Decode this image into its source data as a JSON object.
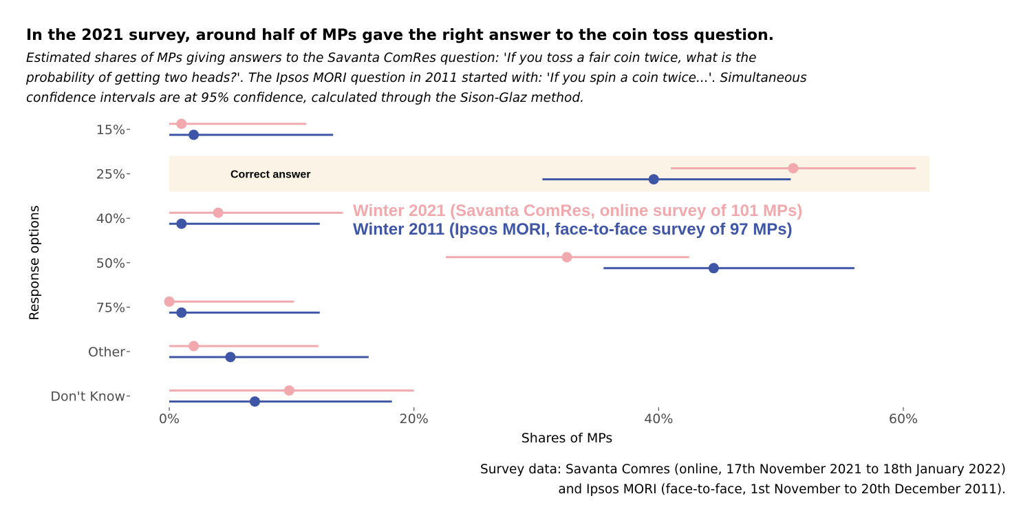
{
  "title": "In the 2021 survey, around half of MPs gave the right answer to the coin toss question.",
  "subtitle_lines": [
    "Estimated shares of MPs giving answers to the Savanta ComRes question: 'If you toss a fair coin twice, what is the",
    "probability of getting two heads?'. The Ipsos MORI question in 2011 started with: 'If you spin a coin twice...'. Simultaneous",
    "confidence intervals are at 95% confidence, calculated through the Sison-Glaz method."
  ],
  "caption_lines": [
    "Survey data: Savanta Comres (online, 17th November 2021 to 18th January 2022)",
    "and Ipsos MORI (face-to-face, 1st November to 20th December 2011)."
  ],
  "highlight_label": "Correct answer",
  "colors": {
    "series_2021": "#f2a9ad",
    "series_2011": "#3f56a6",
    "highlight_band": "#faf3e6",
    "tick_text": "#4d4d4d"
  },
  "chart_data": {
    "type": "dot-interval",
    "xlabel": "Shares of MPs",
    "ylabel": "Response options",
    "categories": [
      "15%",
      "25%",
      "40%",
      "50%",
      "75%",
      "Other",
      "Don't Know"
    ],
    "highlight_category": "25%",
    "x_ticks": [
      0,
      20,
      40,
      60
    ],
    "x_tick_labels": [
      "0%",
      "20%",
      "40%",
      "60%"
    ],
    "xlim": [
      0,
      62
    ],
    "grid": false,
    "legend_position": "inside-middle",
    "series": [
      {
        "name": "Winter 2021 (Savanta ComRes, online survey of 101 MPs)",
        "color": "#f2a9ad",
        "estimate": [
          1.0,
          51.0,
          4.0,
          32.5,
          0.0,
          2.0,
          9.8
        ],
        "lower": [
          0.0,
          41.0,
          0.0,
          22.6,
          0.0,
          0.0,
          0.0
        ],
        "upper": [
          11.2,
          61.0,
          14.2,
          42.5,
          10.2,
          12.2,
          20.0
        ]
      },
      {
        "name": "Winter 2011 (Ipsos MORI, face-to-face survey of 97 MPs)",
        "color": "#3f56a6",
        "estimate": [
          2.0,
          39.6,
          1.0,
          44.5,
          1.0,
          5.0,
          7.0
        ],
        "lower": [
          0.0,
          30.5,
          0.0,
          35.5,
          0.0,
          0.0,
          0.0
        ],
        "upper": [
          13.4,
          50.8,
          12.3,
          56.0,
          12.3,
          16.3,
          18.2
        ]
      }
    ]
  }
}
